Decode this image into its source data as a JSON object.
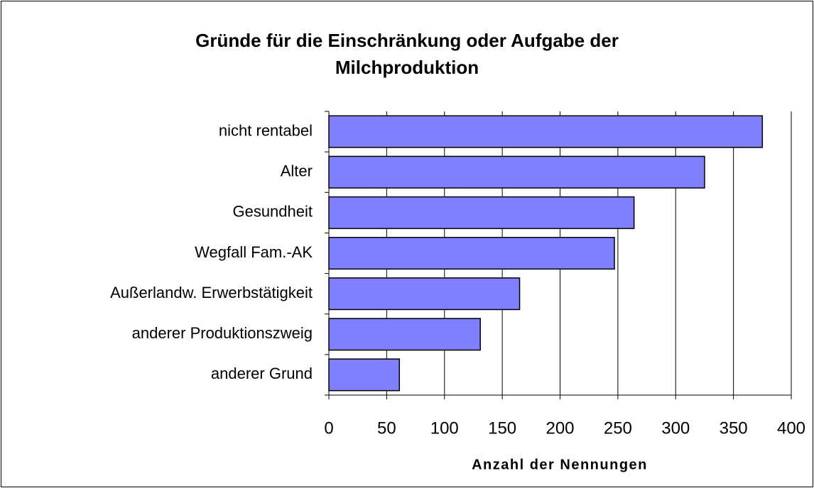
{
  "chart_data": {
    "type": "barh",
    "title": "Gründe für die Einschränkung oder Aufgabe der Milchproduktion",
    "categories": [
      "nicht rentabel",
      "Alter",
      "Gesundheit",
      "Wegfall Fam.-AK",
      "Außerlandw. Erwerbstätigkeit",
      "anderer Produktionszweig",
      "anderer Grund"
    ],
    "values": [
      375,
      325,
      264,
      247,
      165,
      131,
      61
    ],
    "color": "#8080ff",
    "xlabel": "Anzahl der Nennungen",
    "xlim": [
      0,
      400
    ],
    "xticks": [
      0,
      50,
      100,
      150,
      200,
      250,
      300,
      350,
      400
    ],
    "grid": true
  }
}
